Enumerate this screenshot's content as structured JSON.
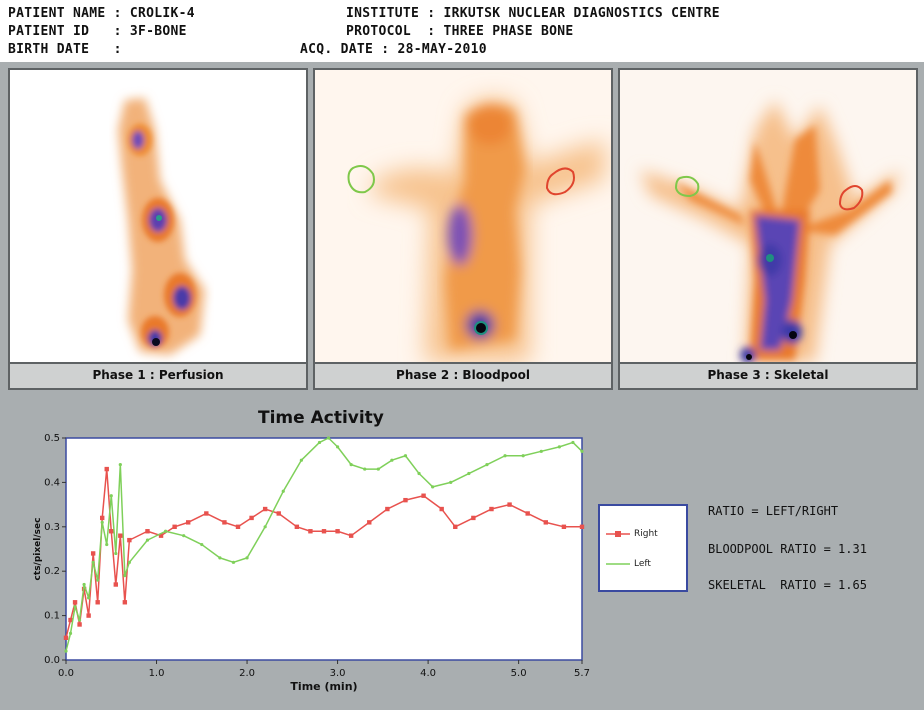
{
  "header": {
    "patient_name": "PATIENT NAME : CROLIK-4",
    "patient_id": "PATIENT ID   : 3F-BONE",
    "birth_date": "BIRTH DATE   :",
    "institute": "INSTITUTE : IRKUTSK NUCLEAR DIAGNOSTICS CENTRE",
    "protocol": "PROTOCOL  : THREE PHASE BONE",
    "acq_date": "ACQ. DATE : 28-MAY-2010"
  },
  "phases": [
    {
      "label": "Phase 1 : Perfusion"
    },
    {
      "label": "Phase 2 : Bloodpool"
    },
    {
      "label": "Phase 3 : Skeletal"
    }
  ],
  "ratios": {
    "definition": "RATIO = LEFT/RIGHT",
    "bloodpool": "BLOODPOOL RATIO = 1.31",
    "skeletal": "SKELETAL  RATIO = 1.65"
  },
  "colors": {
    "right": "#e8524e",
    "left": "#7fd05a",
    "legend_border": "#3a4aa0"
  },
  "chart_data": {
    "type": "line",
    "title": "Time Activity",
    "xlabel": "Time (min)",
    "ylabel": "cts/pixel/sec",
    "xlim": [
      0,
      5.7
    ],
    "ylim": [
      0,
      0.5
    ],
    "xticks": [
      "0.0",
      "1.0",
      "2.0",
      "3.0",
      "4.0",
      "5.0",
      "5.7"
    ],
    "yticks": [
      "0.0",
      "0.1",
      "0.2",
      "0.3",
      "0.4",
      "0.5"
    ],
    "grid": false,
    "legend_position": "right",
    "series": [
      {
        "name": "Right",
        "x": [
          0.0,
          0.05,
          0.1,
          0.15,
          0.2,
          0.25,
          0.3,
          0.35,
          0.4,
          0.45,
          0.5,
          0.55,
          0.6,
          0.65,
          0.7,
          0.9,
          1.05,
          1.2,
          1.35,
          1.55,
          1.75,
          1.9,
          2.05,
          2.2,
          2.35,
          2.55,
          2.7,
          2.85,
          3.0,
          3.15,
          3.35,
          3.55,
          3.75,
          3.95,
          4.15,
          4.3,
          4.5,
          4.7,
          4.9,
          5.1,
          5.3,
          5.5,
          5.7
        ],
        "values": [
          0.05,
          0.09,
          0.13,
          0.08,
          0.16,
          0.1,
          0.24,
          0.13,
          0.32,
          0.43,
          0.29,
          0.17,
          0.28,
          0.13,
          0.27,
          0.29,
          0.28,
          0.3,
          0.31,
          0.33,
          0.31,
          0.3,
          0.32,
          0.34,
          0.33,
          0.3,
          0.29,
          0.29,
          0.29,
          0.28,
          0.31,
          0.34,
          0.36,
          0.37,
          0.34,
          0.3,
          0.32,
          0.34,
          0.35,
          0.33,
          0.31,
          0.3,
          0.3
        ]
      },
      {
        "name": "Left",
        "x": [
          0.0,
          0.05,
          0.1,
          0.15,
          0.2,
          0.25,
          0.3,
          0.35,
          0.4,
          0.45,
          0.5,
          0.55,
          0.6,
          0.65,
          0.7,
          0.9,
          1.1,
          1.3,
          1.5,
          1.7,
          1.85,
          2.0,
          2.2,
          2.4,
          2.6,
          2.8,
          2.9,
          3.0,
          3.15,
          3.3,
          3.45,
          3.6,
          3.75,
          3.9,
          4.05,
          4.25,
          4.45,
          4.65,
          4.85,
          5.05,
          5.25,
          5.45,
          5.6,
          5.7
        ],
        "values": [
          0.02,
          0.06,
          0.12,
          0.09,
          0.17,
          0.14,
          0.22,
          0.18,
          0.31,
          0.26,
          0.37,
          0.24,
          0.44,
          0.19,
          0.22,
          0.27,
          0.29,
          0.28,
          0.26,
          0.23,
          0.22,
          0.23,
          0.3,
          0.38,
          0.45,
          0.49,
          0.5,
          0.48,
          0.44,
          0.43,
          0.43,
          0.45,
          0.46,
          0.42,
          0.39,
          0.4,
          0.42,
          0.44,
          0.46,
          0.46,
          0.47,
          0.48,
          0.49,
          0.47
        ]
      }
    ]
  }
}
